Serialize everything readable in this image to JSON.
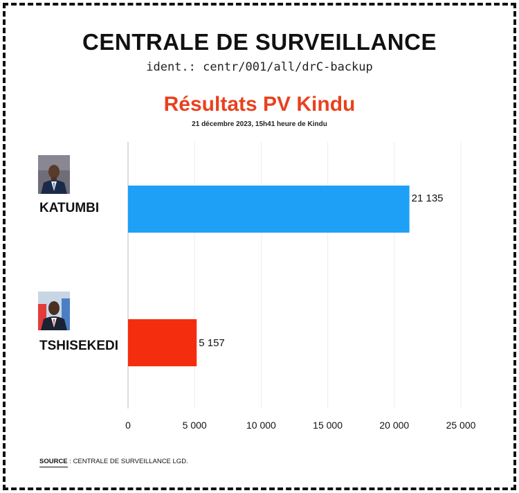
{
  "header": {
    "title": "CENTRALE DE SURVEILLANCE",
    "ident": "ident.: centr/001/all/drC-backup"
  },
  "footer": {
    "source_key": "SOURCE",
    "source_text": " : CENTRALE DE SURVEILLANCE LGD."
  },
  "colors": {
    "title": "#e8411e",
    "katumbi": "#1ea0f7",
    "tshisekedi": "#f52d0f"
  },
  "chart_data": {
    "type": "bar",
    "orientation": "horizontal",
    "title": "Résultats PV Kindu",
    "subtitle": "21 décembre 2023, 15h41 heure de Kindu",
    "categories": [
      "KATUMBI",
      "TSHISEKEDI"
    ],
    "values": [
      21135,
      5157
    ],
    "value_labels": [
      "21 135",
      "5 157"
    ],
    "bar_colors": [
      "#1ea0f7",
      "#f52d0f"
    ],
    "xlim": [
      0,
      25000
    ],
    "xticks": [
      0,
      5000,
      10000,
      15000,
      20000,
      25000
    ],
    "xtick_labels": [
      "0",
      "5 000",
      "10 000",
      "15 000",
      "20 000",
      "25 000"
    ],
    "xlabel": "",
    "ylabel": "",
    "grid": true,
    "legend": "none"
  }
}
